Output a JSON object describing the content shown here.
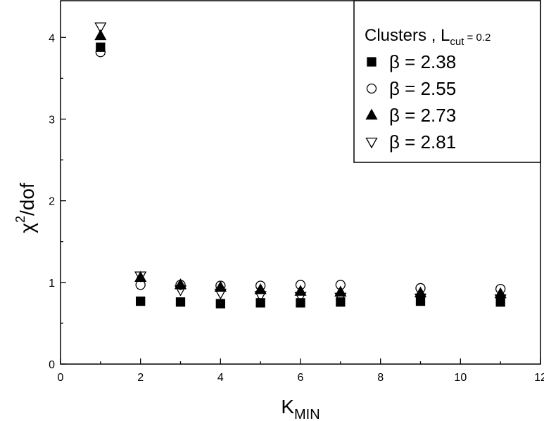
{
  "chart_data": {
    "type": "scatter",
    "xlabel": {
      "main": "K",
      "sub": "MIN"
    },
    "ylabel": {
      "main": "χ",
      "sup": "2",
      "rest": "/dof"
    },
    "xlim": [
      0,
      12
    ],
    "ylim": [
      0,
      4.45
    ],
    "x_ticks": [
      "0",
      "2",
      "4",
      "6",
      "8",
      "10",
      "12"
    ],
    "y_ticks": [
      "0",
      "1",
      "2",
      "3",
      "4"
    ],
    "x_tick_values": [
      0,
      2,
      4,
      6,
      8,
      10,
      12
    ],
    "y_tick_values": [
      0,
      1,
      2,
      3,
      4
    ],
    "grid": false,
    "legend_position": "top-right",
    "legend_title": {
      "main": "Clusters , L",
      "sub": "cut",
      "rest": " = 0.2"
    },
    "series": [
      {
        "name": "β = 2.38",
        "marker": "filled-square",
        "x": [
          1,
          2,
          3,
          4,
          5,
          6,
          7,
          9,
          11
        ],
        "y": [
          3.88,
          0.77,
          0.76,
          0.74,
          0.75,
          0.75,
          0.76,
          0.77,
          0.76
        ]
      },
      {
        "name": "β = 2.55",
        "marker": "open-circle",
        "x": [
          1,
          2,
          3,
          4,
          5,
          6,
          7,
          9,
          11
        ],
        "y": [
          3.82,
          0.97,
          0.97,
          0.96,
          0.96,
          0.97,
          0.97,
          0.93,
          0.92
        ]
      },
      {
        "name": "β = 2.73",
        "marker": "filled-triangle-up",
        "x": [
          1,
          2,
          3,
          4,
          5,
          6,
          7,
          9,
          11
        ],
        "y": [
          4.02,
          1.06,
          0.97,
          0.94,
          0.91,
          0.89,
          0.88,
          0.87,
          0.86
        ]
      },
      {
        "name": "β = 2.81",
        "marker": "open-triangle-down",
        "x": [
          1,
          2,
          3,
          4,
          5,
          6,
          7,
          9,
          11
        ],
        "y": [
          4.13,
          1.08,
          0.91,
          0.87,
          0.84,
          0.83,
          0.82,
          0.81,
          0.8
        ]
      }
    ]
  }
}
